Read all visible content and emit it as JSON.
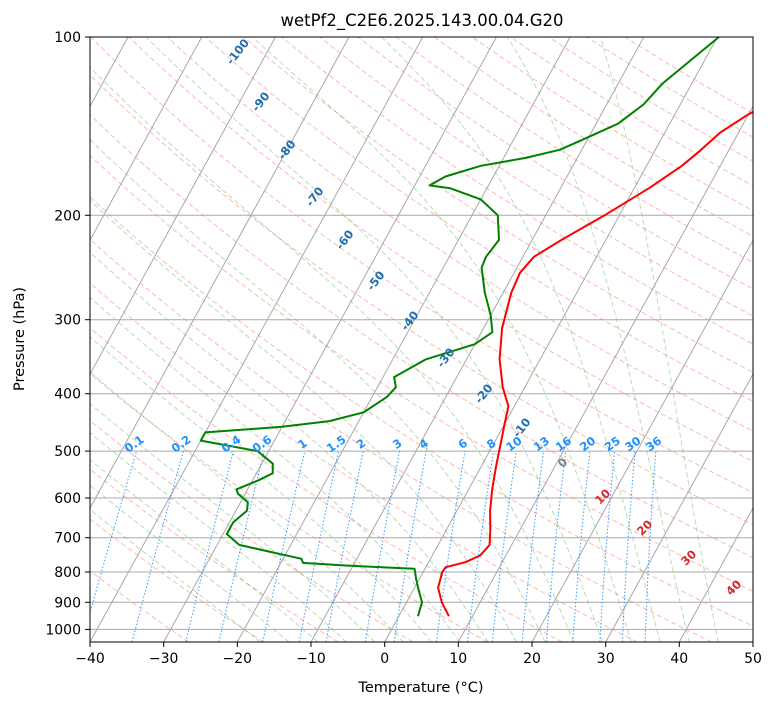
{
  "chart_data": {
    "type": "line",
    "title": "wetPf2_C2E6.2025.143.00.04.G20",
    "xlabel": "Temperature (°C)",
    "ylabel": "Pressure (hPa)",
    "xlim": [
      -40,
      50
    ],
    "ylim": [
      1050,
      100
    ],
    "y_scale": "log",
    "x_ticks": [
      -40,
      -30,
      -20,
      -10,
      0,
      10,
      20,
      30,
      40,
      50
    ],
    "y_ticks": [
      100,
      200,
      300,
      400,
      500,
      600,
      700,
      800,
      900,
      1000
    ],
    "grid": true,
    "series": [
      {
        "name": "",
        "color": "#ff0000",
        "points": [
          [
            6.8,
            950
          ],
          [
            4.8,
            900
          ],
          [
            3.2,
            850
          ],
          [
            2.6,
            800
          ],
          [
            2.7,
            785
          ],
          [
            5,
            770
          ],
          [
            6.5,
            750
          ],
          [
            7,
            720
          ],
          [
            6,
            680
          ],
          [
            4.5,
            630
          ],
          [
            3.2,
            580
          ],
          [
            2,
            530
          ],
          [
            0.8,
            480
          ],
          [
            0,
            450
          ],
          [
            -0.8,
            420
          ],
          [
            -3,
            390
          ],
          [
            -5.5,
            350
          ],
          [
            -7.5,
            310
          ],
          [
            -8.9,
            270
          ],
          [
            -9.2,
            250
          ],
          [
            -8.5,
            235
          ],
          [
            -6,
            220
          ],
          [
            -2,
            200
          ],
          [
            2,
            180
          ],
          [
            4.8,
            165
          ],
          [
            6.2,
            155
          ],
          [
            7.5,
            145
          ],
          [
            10,
            135
          ],
          [
            14,
            125
          ],
          [
            16.5,
            115
          ],
          [
            17.6,
            108
          ],
          [
            19.8,
            100
          ]
        ]
      },
      {
        "name": "",
        "color": "#008000",
        "points": [
          [
            2.6,
            950
          ],
          [
            2.1,
            900
          ],
          [
            0.8,
            860
          ],
          [
            -0.5,
            820
          ],
          [
            -1.4,
            790
          ],
          [
            -11,
            780
          ],
          [
            -17,
            772
          ],
          [
            -17.5,
            760
          ],
          [
            -27,
            720
          ],
          [
            -29.5,
            690
          ],
          [
            -29.5,
            660
          ],
          [
            -28.5,
            630
          ],
          [
            -29,
            610
          ],
          [
            -31,
            590
          ],
          [
            -31.5,
            580
          ],
          [
            -29.2,
            560
          ],
          [
            -27.8,
            545
          ],
          [
            -28.5,
            525
          ],
          [
            -31.5,
            500
          ],
          [
            -40,
            480
          ],
          [
            -40,
            465
          ],
          [
            -30,
            455
          ],
          [
            -24,
            445
          ],
          [
            -20,
            430
          ],
          [
            -18,
            405
          ],
          [
            -17.5,
            390
          ],
          [
            -18.5,
            375
          ],
          [
            -15.5,
            350
          ],
          [
            -10,
            330
          ],
          [
            -8.5,
            315
          ],
          [
            -10,
            295
          ],
          [
            -12.5,
            270
          ],
          [
            -14.8,
            245
          ],
          [
            -15,
            235
          ],
          [
            -14.5,
            220
          ],
          [
            -16.5,
            200
          ],
          [
            -20,
            188
          ],
          [
            -25,
            180
          ],
          [
            -28,
            178
          ],
          [
            -26.5,
            172
          ],
          [
            -22.5,
            165
          ],
          [
            -17,
            160
          ],
          [
            -13,
            155
          ],
          [
            -11,
            150
          ],
          [
            -7,
            140
          ],
          [
            -5,
            130
          ],
          [
            -4,
            120
          ],
          [
            -2,
            110
          ],
          [
            0.2,
            100
          ]
        ]
      }
    ],
    "isotherm_labels": [
      "-100",
      "-90",
      "-80",
      "-70",
      "-60",
      "-50",
      "-40",
      "-30",
      "-20",
      "-10"
    ],
    "mixing_ratio_labels": [
      "0.1",
      "0.2",
      "0.4",
      "0.6",
      "1",
      "1.5",
      "2",
      "3",
      "4",
      "6",
      "8",
      "10",
      "13",
      "16",
      "20",
      "25",
      "30",
      "36"
    ],
    "dry_adiabat_labels": [
      "0",
      "10",
      "20",
      "30",
      "40"
    ]
  }
}
